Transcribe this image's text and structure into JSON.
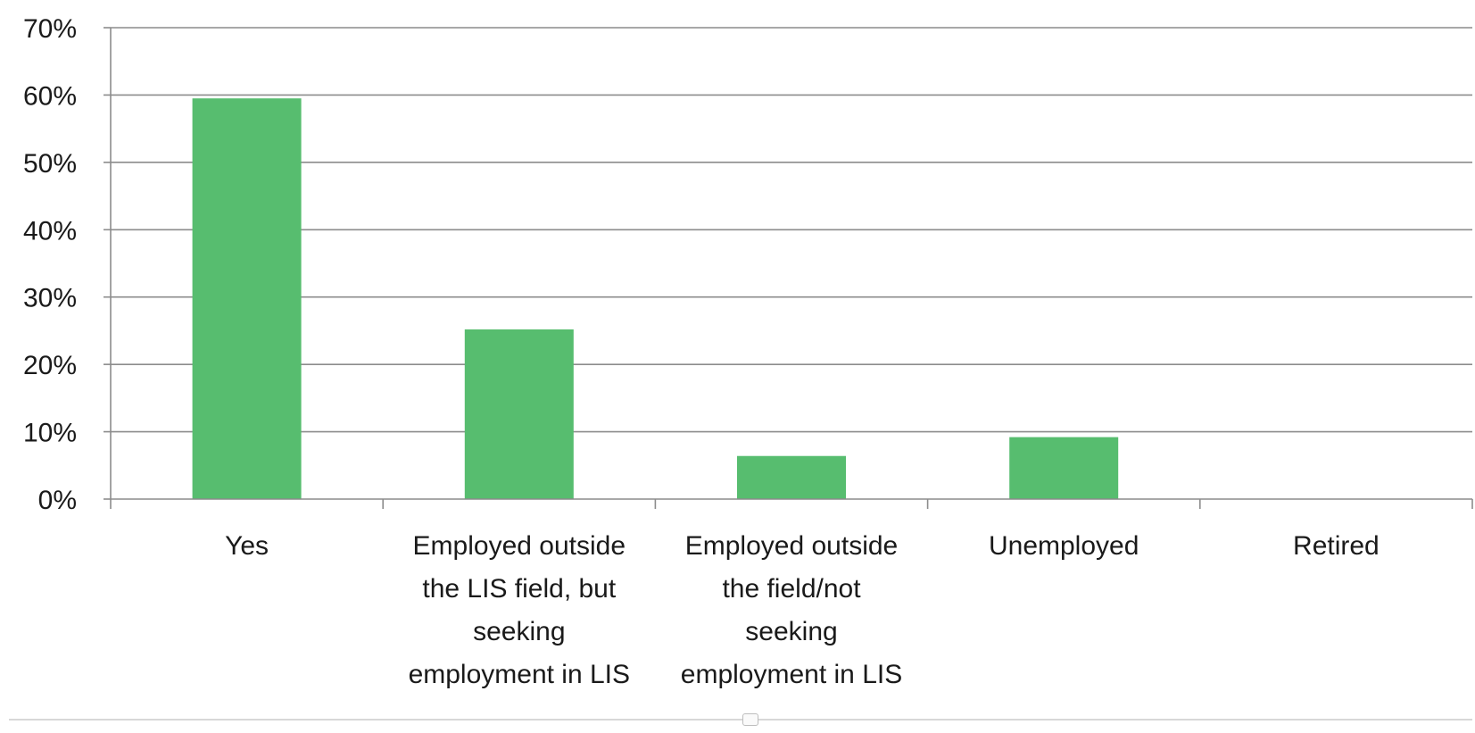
{
  "chart_data": {
    "type": "bar",
    "categories": [
      [
        "Yes"
      ],
      [
        "Employed outside",
        "the LIS field, but",
        "seeking",
        "employment in LIS"
      ],
      [
        "Employed outside",
        "the  field/not",
        "seeking",
        "employment in LIS"
      ],
      [
        "Unemployed"
      ],
      [
        "Retired"
      ]
    ],
    "values": [
      59.5,
      25.2,
      6.4,
      9.2,
      0
    ],
    "ylim": [
      0,
      70
    ],
    "yticks": [
      0,
      10,
      20,
      30,
      40,
      50,
      60,
      70
    ],
    "ytick_labels": [
      "0%",
      "10%",
      "20%",
      "30%",
      "40%",
      "50%",
      "60%",
      "70%"
    ],
    "bar_color": "#57bd6f",
    "grid": true,
    "grid_color": "#8c8c8c",
    "title": "",
    "xlabel": "",
    "ylabel": ""
  }
}
